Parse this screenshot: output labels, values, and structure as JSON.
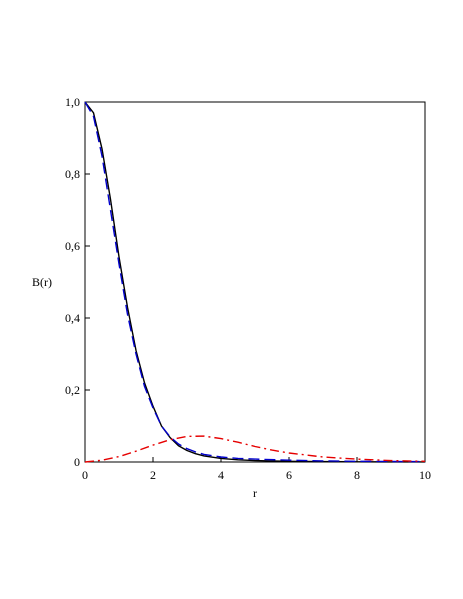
{
  "chart_data": {
    "type": "line",
    "title": "",
    "xlabel": "r",
    "ylabel": "B(r)",
    "xlim": [
      0,
      10
    ],
    "ylim": [
      0,
      1
    ],
    "grid": false,
    "x_ticks": [
      {
        "value": 0,
        "label": "0"
      },
      {
        "value": 2,
        "label": "2"
      },
      {
        "value": 4,
        "label": "4"
      },
      {
        "value": 6,
        "label": "6"
      },
      {
        "value": 8,
        "label": "8"
      },
      {
        "value": 10,
        "label": "10"
      }
    ],
    "y_ticks": [
      {
        "value": 0,
        "label": "0"
      },
      {
        "value": 0.2,
        "label": "0,2"
      },
      {
        "value": 0.4,
        "label": "0,4"
      },
      {
        "value": 0.6,
        "label": "0,6"
      },
      {
        "value": 0.8,
        "label": "0,8"
      },
      {
        "value": 1.0,
        "label": "1,0"
      }
    ],
    "series": [
      {
        "color": "#000000",
        "style": "solid",
        "x": [
          0,
          0.25,
          0.5,
          0.75,
          1.0,
          1.25,
          1.5,
          1.75,
          2.0,
          2.25,
          2.5,
          2.75,
          3.0,
          3.25,
          3.5,
          4.0,
          4.5,
          5.0,
          6.0,
          7.0,
          8.0,
          9.0,
          10.0
        ],
        "y": [
          1.0,
          0.97,
          0.87,
          0.73,
          0.57,
          0.43,
          0.31,
          0.22,
          0.155,
          0.1,
          0.068,
          0.045,
          0.032,
          0.023,
          0.017,
          0.01,
          0.006,
          0.004,
          0.002,
          0.001,
          0.0005,
          0.0003,
          0.0002
        ]
      },
      {
        "color": "#0000cc",
        "style": "dashed",
        "x": [
          0,
          0.25,
          0.5,
          0.75,
          1.0,
          1.25,
          1.5,
          1.75,
          2.0,
          2.25,
          2.5,
          2.75,
          3.0,
          3.25,
          3.5,
          4.0,
          4.5,
          5.0,
          6.0,
          7.0,
          8.0,
          9.0,
          10.0
        ],
        "y": [
          1.0,
          0.96,
          0.85,
          0.7,
          0.55,
          0.41,
          0.3,
          0.21,
          0.15,
          0.1,
          0.07,
          0.05,
          0.037,
          0.028,
          0.021,
          0.014,
          0.01,
          0.008,
          0.005,
          0.003,
          0.002,
          0.0015,
          0.001
        ]
      },
      {
        "color": "#e60000",
        "style": "dashdot",
        "x": [
          0,
          0.5,
          1.0,
          1.5,
          2.0,
          2.5,
          3.0,
          3.5,
          4.0,
          4.5,
          5.0,
          5.5,
          6.0,
          7.0,
          8.0,
          9.0,
          10.0
        ],
        "y": [
          0,
          0.005,
          0.015,
          0.03,
          0.047,
          0.062,
          0.071,
          0.072,
          0.065,
          0.055,
          0.043,
          0.033,
          0.025,
          0.014,
          0.008,
          0.004,
          0.002
        ]
      }
    ]
  }
}
